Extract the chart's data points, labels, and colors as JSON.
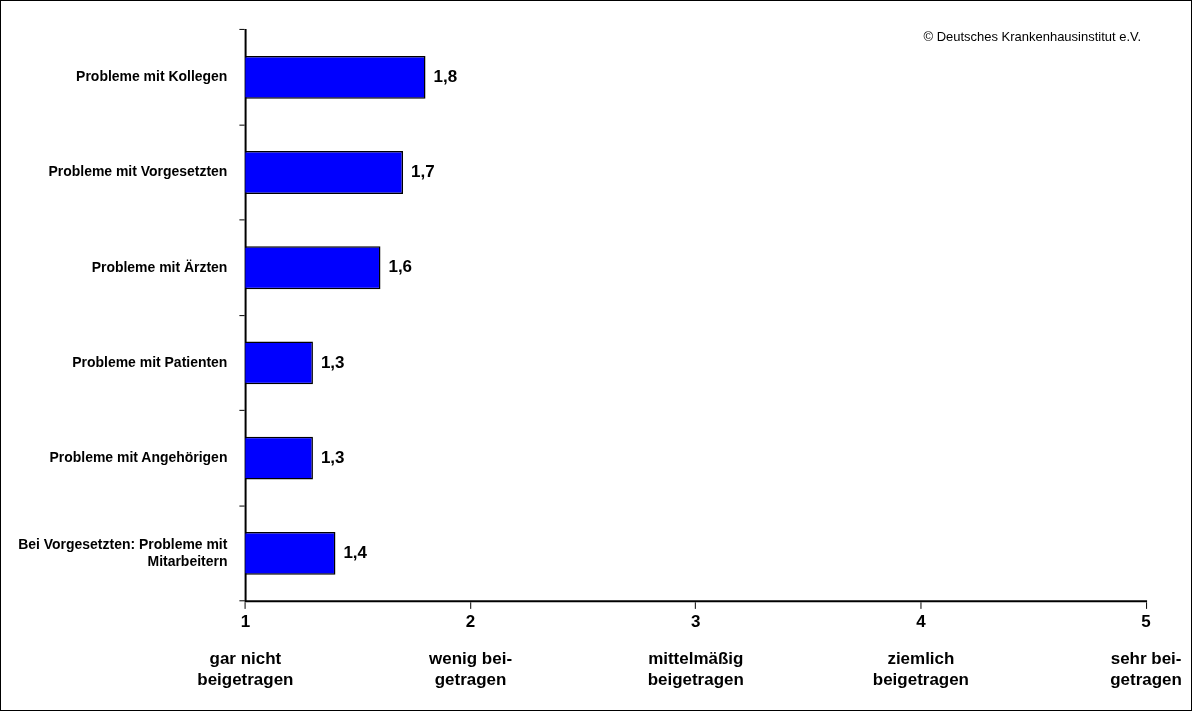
{
  "chart_data": {
    "type": "bar",
    "orientation": "horizontal",
    "categories": [
      "Probleme mit Kollegen",
      "Probleme mit Vorgesetzten",
      "Probleme mit Ärzten",
      "Probleme mit Patienten",
      "Probleme mit Angehörigen",
      "Bei Vorgesetzten: Probleme mit Mitarbeitern"
    ],
    "values": [
      1.8,
      1.7,
      1.6,
      1.3,
      1.3,
      1.4
    ],
    "value_labels": [
      "1,8",
      "1,7",
      "1,6",
      "1,3",
      "1,3",
      "1,4"
    ],
    "color": "#0000ff",
    "xlim": [
      1,
      5
    ],
    "xticks": [
      1,
      2,
      3,
      4,
      5
    ],
    "grid": false,
    "legend": false,
    "annotations": [
      "© Deutsches Krankenhausinstitut e.V.",
      "gar nicht\nbeigetragen",
      "wenig bei-\ngetragen",
      "mittelmäßig\nbeigetragen",
      "ziemlich\nbeigetragen",
      "sehr bei-\ngetragen"
    ]
  }
}
